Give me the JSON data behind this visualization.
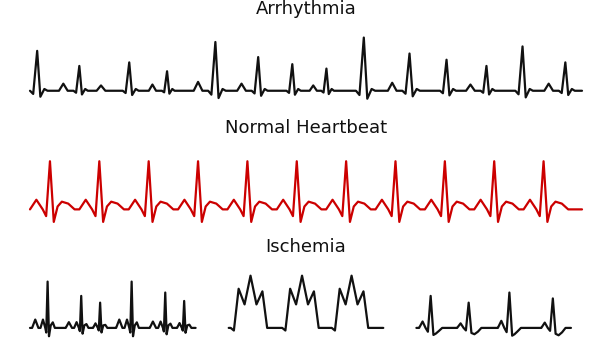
{
  "title_arrhythmia": "Arrhythmia",
  "title_normal": "Normal Heartbeat",
  "title_ischemia": "Ischemia",
  "color_arrhythmia": "#111111",
  "color_normal": "#cc0000",
  "color_ischemia": "#111111",
  "bg_color": "#ffffff",
  "title_fontsize": 13,
  "lw": 1.6
}
